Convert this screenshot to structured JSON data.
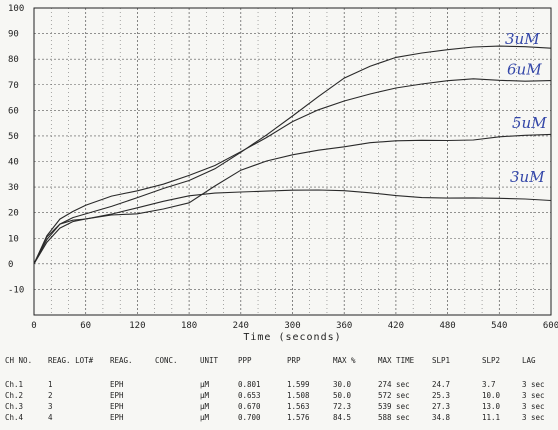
{
  "chart_data": {
    "type": "line",
    "xlabel": "Time (seconds)",
    "ylabel": "",
    "xlim": [
      0,
      600
    ],
    "ylim": [
      -20,
      100
    ],
    "xticks": [
      0,
      60,
      120,
      180,
      240,
      300,
      360,
      420,
      480,
      540,
      600
    ],
    "yticks": [
      100,
      90,
      80,
      70,
      60,
      50,
      40,
      30,
      20,
      10,
      0,
      -10
    ],
    "grid": true,
    "series": [
      {
        "name": "3uM",
        "x": [
          0,
          15,
          30,
          45,
          60,
          90,
          120,
          150,
          180,
          210,
          240,
          270,
          300,
          330,
          360,
          390,
          420,
          450,
          480,
          510,
          540,
          570,
          600
        ],
        "y": [
          0,
          9,
          15,
          18,
          20,
          23,
          26,
          29,
          32,
          37,
          44,
          51,
          58,
          65,
          72,
          77,
          81,
          83,
          84,
          84.5,
          84.5,
          84.5,
          84.5
        ]
      },
      {
        "name": "6uM",
        "x": [
          0,
          15,
          30,
          45,
          60,
          90,
          120,
          150,
          180,
          210,
          240,
          270,
          300,
          330,
          360,
          390,
          420,
          450,
          480,
          510,
          540,
          570,
          600
        ],
        "y": [
          0,
          11,
          18,
          21,
          23,
          26,
          28,
          31,
          35,
          39,
          44,
          49,
          55,
          60,
          64,
          67,
          69,
          70,
          71,
          72,
          72,
          72,
          72
        ]
      },
      {
        "name": "5uM",
        "x": [
          0,
          15,
          30,
          45,
          60,
          90,
          120,
          150,
          180,
          210,
          240,
          270,
          300,
          330,
          360,
          390,
          420,
          450,
          480,
          510,
          540,
          570,
          600
        ],
        "y": [
          0,
          9,
          14,
          16,
          17,
          19,
          20,
          22,
          24,
          30,
          36,
          40,
          43,
          45,
          46,
          47,
          47.5,
          48,
          48.5,
          49,
          50,
          50,
          50
        ]
      },
      {
        "name": "3uM",
        "x": [
          0,
          15,
          30,
          45,
          60,
          90,
          120,
          150,
          180,
          210,
          240,
          270,
          300,
          330,
          360,
          390,
          420,
          450,
          480,
          510,
          540,
          570,
          600
        ],
        "y": [
          0,
          10,
          15,
          17,
          18,
          20,
          22,
          24,
          26,
          27.5,
          28.5,
          29,
          29,
          28.5,
          28,
          27.5,
          27,
          26.5,
          26,
          25.5,
          25,
          25,
          25
        ]
      }
    ],
    "annotations": [
      "3uM",
      "6uM",
      "5uM",
      "3uM"
    ]
  },
  "colors": {
    "curve": "#2a2a2a",
    "grid": "#555555",
    "ink": "#3346a8"
  },
  "table": {
    "headers": [
      "CH NO.",
      "REAG. LOT#",
      "REAG.",
      "CONC.",
      "UNIT",
      "PPP",
      "PRP",
      "MAX %",
      "MAX TIME",
      "SLP1",
      "SLP2",
      "LAG"
    ],
    "rows": [
      [
        "Ch.1",
        "1",
        "EPH",
        "",
        "μM",
        "0.801",
        "1.599",
        "30.0",
        "274 sec",
        "24.7",
        "3.7",
        "3 sec"
      ],
      [
        "Ch.2",
        "2",
        "EPH",
        "",
        "μM",
        "0.653",
        "1.508",
        "50.0",
        "572 sec",
        "25.3",
        "10.0",
        "3 sec"
      ],
      [
        "Ch.3",
        "3",
        "EPH",
        "",
        "μM",
        "0.670",
        "1.563",
        "72.3",
        "539 sec",
        "27.3",
        "13.0",
        "3 sec"
      ],
      [
        "Ch.4",
        "4",
        "EPH",
        "",
        "μM",
        "0.700",
        "1.576",
        "84.5",
        "588 sec",
        "34.8",
        "11.1",
        "3 sec"
      ]
    ]
  }
}
